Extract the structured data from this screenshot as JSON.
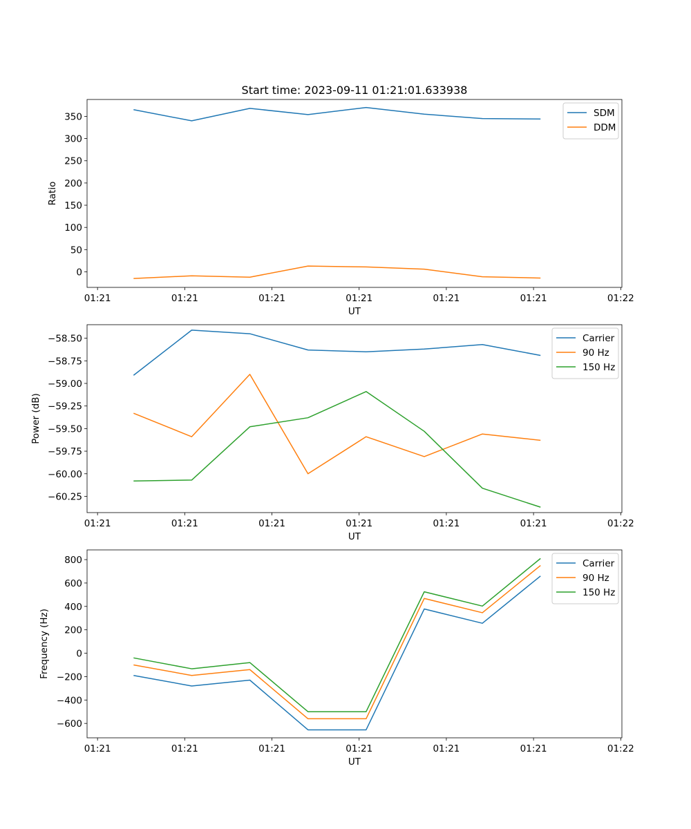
{
  "colors": {
    "blue": "#1f77b4",
    "orange": "#ff7f0e",
    "green": "#2ca02c"
  },
  "chart_data": [
    {
      "type": "line",
      "title": "Start time: 2023-09-11 01:21:01.633938",
      "xlabel": "UT",
      "ylabel": "Ratio",
      "x": [
        1,
        2,
        3,
        4,
        5,
        6,
        7,
        8
      ],
      "xlim": [
        0.2,
        9.4
      ],
      "xticks": [
        0.38,
        1.88,
        3.38,
        4.88,
        6.38,
        7.88,
        9.38
      ],
      "xtick_labels": [
        "01:21",
        "01:21",
        "01:21",
        "01:21",
        "01:21",
        "01:21",
        "01:22"
      ],
      "ylim": [
        -35,
        388
      ],
      "yticks": [
        0,
        50,
        100,
        150,
        200,
        250,
        300,
        350
      ],
      "ytick_labels": [
        "0",
        "50",
        "100",
        "150",
        "200",
        "250",
        "300",
        "350"
      ],
      "legend_position": "top-right",
      "series": [
        {
          "name": "SDM",
          "color": "#1f77b4",
          "values": [
            365,
            340,
            368,
            354,
            370,
            355,
            345,
            344
          ]
        },
        {
          "name": "DDM",
          "color": "#ff7f0e",
          "values": [
            -15,
            -9,
            -12,
            13,
            11,
            6,
            -11,
            -14
          ]
        }
      ]
    },
    {
      "type": "line",
      "title": "",
      "xlabel": "UT",
      "ylabel": "Power (dB)",
      "x": [
        1,
        2,
        3,
        4,
        5,
        6,
        7,
        8
      ],
      "xlim": [
        0.2,
        9.4
      ],
      "xticks": [
        0.38,
        1.88,
        3.38,
        4.88,
        6.38,
        7.88,
        9.38
      ],
      "xtick_labels": [
        "01:21",
        "01:21",
        "01:21",
        "01:21",
        "01:21",
        "01:21",
        "01:22"
      ],
      "ylim": [
        -60.43,
        -58.35
      ],
      "yticks": [
        -60.25,
        -60.0,
        -59.75,
        -59.5,
        -59.25,
        -59.0,
        -58.75,
        -58.5
      ],
      "ytick_labels": [
        "−60.25",
        "−60.00",
        "−59.75",
        "−59.50",
        "−59.25",
        "−59.00",
        "−58.75",
        "−58.50"
      ],
      "legend_position": "top-right",
      "series": [
        {
          "name": "Carrier",
          "color": "#1f77b4",
          "values": [
            -58.91,
            -58.41,
            -58.45,
            -58.63,
            -58.65,
            -58.62,
            -58.57,
            -58.69
          ]
        },
        {
          "name": "90 Hz",
          "color": "#ff7f0e",
          "values": [
            -59.33,
            -59.59,
            -58.9,
            -60.0,
            -59.59,
            -59.81,
            -59.56,
            -59.63
          ]
        },
        {
          "name": "150 Hz",
          "color": "#2ca02c",
          "values": [
            -60.08,
            -60.07,
            -59.48,
            -59.38,
            -59.09,
            -59.53,
            -60.16,
            -60.37
          ]
        }
      ]
    },
    {
      "type": "line",
      "title": "",
      "xlabel": "UT",
      "ylabel": "Frequency (Hz)",
      "x": [
        1,
        2,
        3,
        4,
        5,
        6,
        7,
        8
      ],
      "xlim": [
        0.2,
        9.4
      ],
      "xticks": [
        0.38,
        1.88,
        3.38,
        4.88,
        6.38,
        7.88,
        9.38
      ],
      "xtick_labels": [
        "01:21",
        "01:21",
        "01:21",
        "01:21",
        "01:21",
        "01:21",
        "01:22"
      ],
      "ylim": [
        -723,
        883
      ],
      "yticks": [
        -600,
        -400,
        -200,
        0,
        200,
        400,
        600,
        800
      ],
      "ytick_labels": [
        "−600",
        "−400",
        "−200",
        "0",
        "200",
        "400",
        "600",
        "800"
      ],
      "legend_position": "top-right",
      "series": [
        {
          "name": "Carrier",
          "color": "#1f77b4",
          "values": [
            -190,
            -280,
            -230,
            -655,
            -655,
            378,
            256,
            660
          ]
        },
        {
          "name": "90 Hz",
          "color": "#ff7f0e",
          "values": [
            -100,
            -190,
            -140,
            -560,
            -560,
            468,
            346,
            750
          ]
        },
        {
          "name": "150 Hz",
          "color": "#2ca02c",
          "values": [
            -40,
            -133,
            -80,
            -500,
            -500,
            525,
            403,
            810
          ]
        }
      ]
    }
  ]
}
